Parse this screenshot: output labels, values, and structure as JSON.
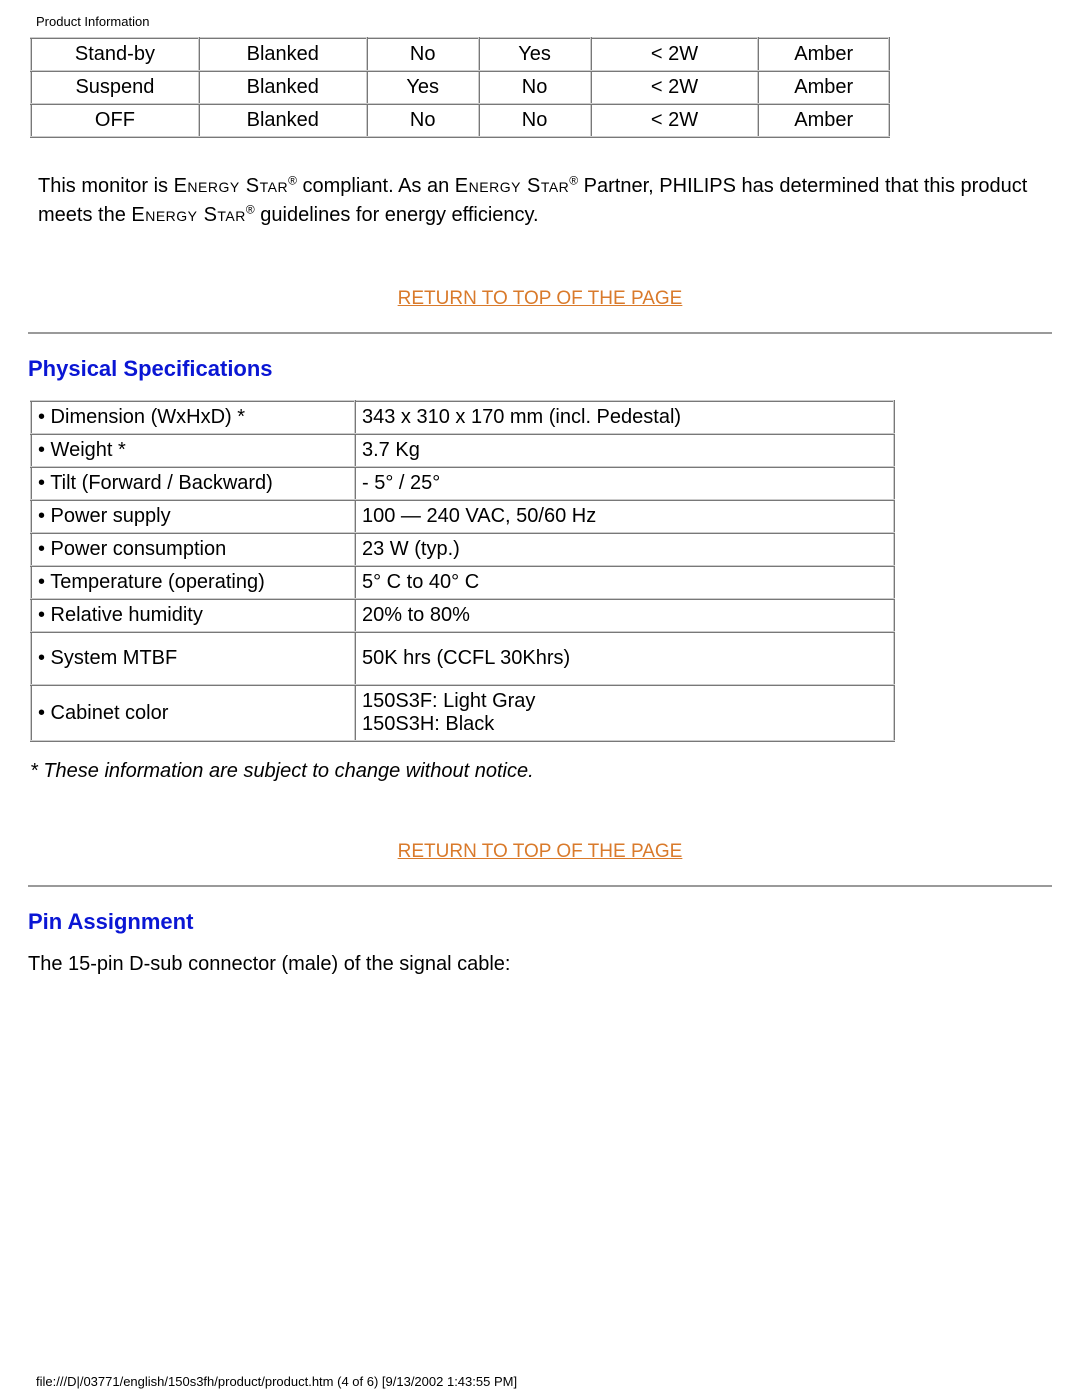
{
  "header": {
    "small": "Product Information"
  },
  "power_table": {
    "rows": [
      [
        "Stand-by",
        "Blanked",
        "No",
        "Yes",
        "< 2W",
        "Amber"
      ],
      [
        "Suspend",
        "Blanked",
        "Yes",
        "No",
        "< 2W",
        "Amber"
      ],
      [
        "OFF",
        "Blanked",
        "No",
        "No",
        "< 2W",
        "Amber"
      ]
    ],
    "colors": {
      "border": "#cccccc"
    }
  },
  "energy_star": {
    "prefix": "This monitor is ",
    "es": "Energy Star",
    "reg": "®",
    "mid1": " compliant. As an ",
    "mid2": " Partner, ",
    "philips": "PHILIPS",
    "mid3": " has determined that this product meets the ",
    "tail": " guidelines for energy efficiency."
  },
  "return_link": "RETURN TO TOP OF THE PAGE",
  "sections": {
    "physical": "Physical Specifications",
    "pin": "Pin Assignment"
  },
  "spec_table": {
    "rows": [
      [
        "• Dimension (WxHxD) *",
        "343 x 310 x 170 mm (incl. Pedestal)"
      ],
      [
        "• Weight *",
        "3.7 Kg"
      ],
      [
        "• Tilt (Forward / Backward)",
        "- 5° / 25°"
      ],
      [
        "• Power supply",
        "100 — 240 VAC, 50/60 Hz"
      ],
      [
        "• Power consumption",
        "23 W (typ.)"
      ],
      [
        "• Temperature (operating)",
        "5° C to 40° C"
      ],
      [
        "• Relative humidity",
        "20% to 80%"
      ],
      [
        "• System MTBF",
        "50K hrs (CCFL 30Khrs)"
      ],
      [
        "• Cabinet color",
        "150S3F: Light Gray\n150S3H: Black"
      ]
    ]
  },
  "footnote": "* These information are subject to change without notice.",
  "pin_text": "The 15-pin D-sub connector (male) of the signal cable:",
  "footer": "file:///D|/03771/english/150s3fh/product/product.htm (4 of 6) [9/13/2002 1:43:55 PM]",
  "palette": {
    "link_color": "#d97a2b",
    "heading_color": "#0a16d4",
    "rule_color": "#9a9a9a",
    "text_color": "#000000",
    "background_color": "#ffffff"
  }
}
